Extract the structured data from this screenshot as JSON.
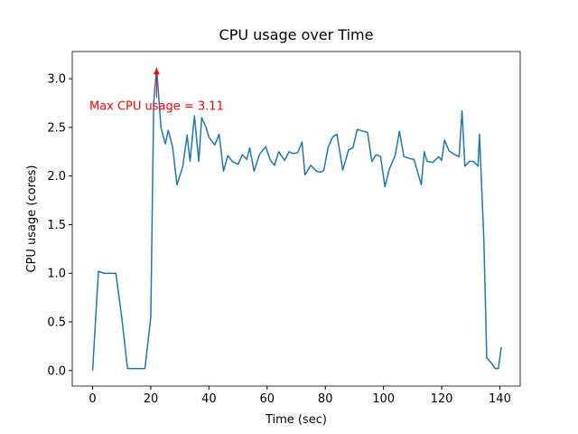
{
  "chart_data": {
    "type": "line",
    "title": "CPU usage over Time",
    "xlabel": "Time (sec)",
    "ylabel": "CPU usage (cores)",
    "x": [
      0,
      2,
      4,
      8,
      10,
      12,
      18,
      20,
      21,
      22,
      23.5,
      25,
      26,
      27.5,
      29,
      31,
      32.5,
      33.5,
      35,
      36.5,
      37.5,
      39,
      40,
      42,
      43.5,
      45,
      46.5,
      48,
      50,
      51.5,
      53,
      54,
      55.5,
      57.5,
      59.5,
      61,
      62.5,
      64,
      66,
      67.5,
      69,
      70.5,
      72,
      73,
      75,
      77,
      78.5,
      79.5,
      81,
      82.5,
      84,
      86,
      88,
      89.5,
      91,
      93,
      94.5,
      96,
      97.5,
      99,
      100.5,
      102,
      104,
      105.5,
      107,
      109,
      110.5,
      113,
      114,
      115,
      117,
      119,
      120,
      121,
      122.5,
      124.5,
      126,
      127,
      128,
      129.5,
      131,
      132.5,
      133,
      134.5,
      135.5,
      137,
      138.5,
      139.5,
      140.5
    ],
    "series": [
      {
        "name": "CPU usage",
        "color": "#1f77b4",
        "values": [
          0,
          1.02,
          1.0,
          1.0,
          0.55,
          0.02,
          0.02,
          0.55,
          2.75,
          3.11,
          2.5,
          2.33,
          2.47,
          2.3,
          1.91,
          2.1,
          2.42,
          2.15,
          2.62,
          2.15,
          2.6,
          2.5,
          2.4,
          2.32,
          2.43,
          2.05,
          2.21,
          2.15,
          2.12,
          2.22,
          2.17,
          2.29,
          2.05,
          2.23,
          2.3,
          2.17,
          2.11,
          2.25,
          2.16,
          2.25,
          2.23,
          2.24,
          2.35,
          2.01,
          2.11,
          2.05,
          2.04,
          2.06,
          2.3,
          2.4,
          2.43,
          2.06,
          2.27,
          2.29,
          2.48,
          2.46,
          2.45,
          2.15,
          2.22,
          2.2,
          1.89,
          2.07,
          2.21,
          2.46,
          2.2,
          2.18,
          2.17,
          1.91,
          2.25,
          2.15,
          2.14,
          2.2,
          2.16,
          2.37,
          2.26,
          2.22,
          2.2,
          2.67,
          2.1,
          2.15,
          2.15,
          2.1,
          2.43,
          1.35,
          0.13,
          0.08,
          0.02,
          0.02,
          0.24
        ]
      }
    ],
    "annotation": {
      "text": "Max CPU usage = 3.11",
      "x": 22,
      "y": 3.11,
      "color": "#ff0000"
    },
    "xlim": [
      -7,
      147
    ],
    "xticks": [
      0,
      20,
      40,
      60,
      80,
      100,
      120,
      140
    ],
    "ylim": [
      -0.16,
      3.28
    ],
    "yticks": [
      {
        "value": 0,
        "label": "0.0"
      },
      {
        "value": 0.5,
        "label": "0.5"
      },
      {
        "value": 1,
        "label": "1.0"
      },
      {
        "value": 1.5,
        "label": "1.5"
      },
      {
        "value": 2,
        "label": "2.0"
      },
      {
        "value": 2.5,
        "label": "2.5"
      },
      {
        "value": 3,
        "label": "3.0"
      }
    ],
    "grid": false
  }
}
